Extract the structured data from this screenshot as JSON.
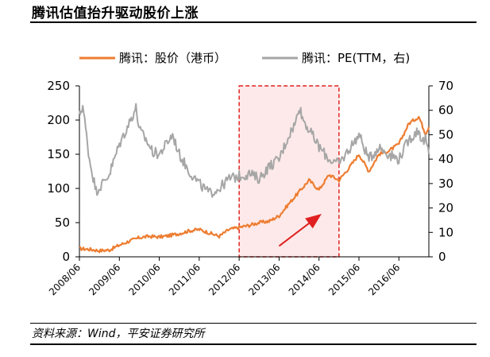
{
  "header": {
    "title": "腾讯估值抬升驱动股价上涨"
  },
  "footer": {
    "source": "资料来源：Wind，平安证券研究所"
  },
  "chart_data": {
    "type": "line",
    "title": "",
    "legend_placement": "top",
    "grid": false,
    "highlight_region": {
      "x_start": "2012/06",
      "x_end": "2014/12",
      "style": "dashed red box, pink fill"
    },
    "arrow_annotation": {
      "from": [
        "2013/06",
        10
      ],
      "to": [
        "2014/06",
        60
      ],
      "color": "#e02020"
    },
    "x_tick_labels": [
      "2008/06",
      "2009/06",
      "2010/06",
      "2011/06",
      "2012/06",
      "2013/06",
      "2014/06",
      "2015/06",
      "2016/06"
    ],
    "y_left": {
      "label": "",
      "range": [
        0,
        250
      ],
      "ticks": [
        0,
        50,
        100,
        150,
        200,
        250
      ]
    },
    "y_right": {
      "label": "",
      "range": [
        0,
        70
      ],
      "ticks": [
        0,
        10,
        20,
        30,
        40,
        50,
        60,
        70
      ]
    },
    "series": [
      {
        "name": "腾讯：股价（港币）",
        "axis": "left",
        "color": "#ed7d31",
        "points": [
          [
            "2008/06",
            12
          ],
          [
            "2008/09",
            11
          ],
          [
            "2008/12",
            9
          ],
          [
            "2009/03",
            10
          ],
          [
            "2009/06",
            17
          ],
          [
            "2009/09",
            23
          ],
          [
            "2009/12",
            28
          ],
          [
            "2010/03",
            30
          ],
          [
            "2010/06",
            29
          ],
          [
            "2010/09",
            31
          ],
          [
            "2010/12",
            34
          ],
          [
            "2011/03",
            38
          ],
          [
            "2011/06",
            40
          ],
          [
            "2011/09",
            35
          ],
          [
            "2011/12",
            30
          ],
          [
            "2012/03",
            40
          ],
          [
            "2012/06",
            43
          ],
          [
            "2012/09",
            46
          ],
          [
            "2012/12",
            50
          ],
          [
            "2013/03",
            52
          ],
          [
            "2013/06",
            60
          ],
          [
            "2013/09",
            78
          ],
          [
            "2013/12",
            95
          ],
          [
            "2014/03",
            112
          ],
          [
            "2014/06",
            98
          ],
          [
            "2014/09",
            120
          ],
          [
            "2014/12",
            112
          ],
          [
            "2015/03",
            130
          ],
          [
            "2015/06",
            150
          ],
          [
            "2015/09",
            125
          ],
          [
            "2015/12",
            150
          ],
          [
            "2016/03",
            155
          ],
          [
            "2016/06",
            165
          ],
          [
            "2016/09",
            195
          ],
          [
            "2016/12",
            205
          ],
          [
            "2017/02",
            180
          ],
          [
            "2017/03",
            190
          ]
        ]
      },
      {
        "name": "腾讯：PE(TTM，右)",
        "axis": "right",
        "color": "#a6a6a6",
        "points": [
          [
            "2008/06",
            58
          ],
          [
            "2008/07",
            62
          ],
          [
            "2008/09",
            40
          ],
          [
            "2008/11",
            27
          ],
          [
            "2009/01",
            30
          ],
          [
            "2009/03",
            34
          ],
          [
            "2009/06",
            46
          ],
          [
            "2009/09",
            55
          ],
          [
            "2009/11",
            61
          ],
          [
            "2009/12",
            52
          ],
          [
            "2010/02",
            48
          ],
          [
            "2010/04",
            43
          ],
          [
            "2010/06",
            42
          ],
          [
            "2010/08",
            46
          ],
          [
            "2010/10",
            50
          ],
          [
            "2010/12",
            42
          ],
          [
            "2011/03",
            35
          ],
          [
            "2011/06",
            30
          ],
          [
            "2011/09",
            26
          ],
          [
            "2011/12",
            28
          ],
          [
            "2012/03",
            32
          ],
          [
            "2012/06",
            33
          ],
          [
            "2012/09",
            34
          ],
          [
            "2012/12",
            32
          ],
          [
            "2013/03",
            37
          ],
          [
            "2013/06",
            40
          ],
          [
            "2013/09",
            50
          ],
          [
            "2013/11",
            55
          ],
          [
            "2013/12",
            62
          ],
          [
            "2014/01",
            57
          ],
          [
            "2014/03",
            52
          ],
          [
            "2014/06",
            45
          ],
          [
            "2014/09",
            40
          ],
          [
            "2014/12",
            38
          ],
          [
            "2015/03",
            44
          ],
          [
            "2015/06",
            50
          ],
          [
            "2015/09",
            40
          ],
          [
            "2015/12",
            45
          ],
          [
            "2016/03",
            42
          ],
          [
            "2016/06",
            40
          ],
          [
            "2016/09",
            48
          ],
          [
            "2016/12",
            52
          ],
          [
            "2017/01",
            47
          ],
          [
            "2017/02",
            48
          ],
          [
            "2017/03",
            42
          ]
        ]
      }
    ]
  }
}
